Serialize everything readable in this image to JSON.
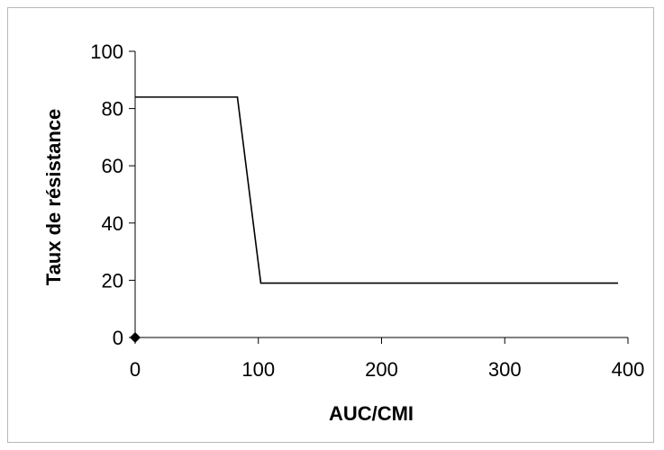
{
  "chart_data": {
    "type": "line",
    "title": "",
    "xlabel": "AUC/CMI",
    "ylabel": "Taux de résistance",
    "xlim": [
      0,
      400
    ],
    "ylim": [
      0,
      100
    ],
    "xticks": [
      0,
      100,
      200,
      300,
      400
    ],
    "yticks": [
      0,
      20,
      40,
      60,
      80,
      100
    ],
    "grid": false,
    "legend": "none",
    "line_color": "#000000",
    "series": [
      {
        "x": [
          0,
          83,
          102,
          392
        ],
        "y": [
          84,
          84,
          19,
          19
        ]
      }
    ],
    "markers": [
      {
        "x": 0,
        "y": 0,
        "shape": "diamond"
      }
    ]
  }
}
